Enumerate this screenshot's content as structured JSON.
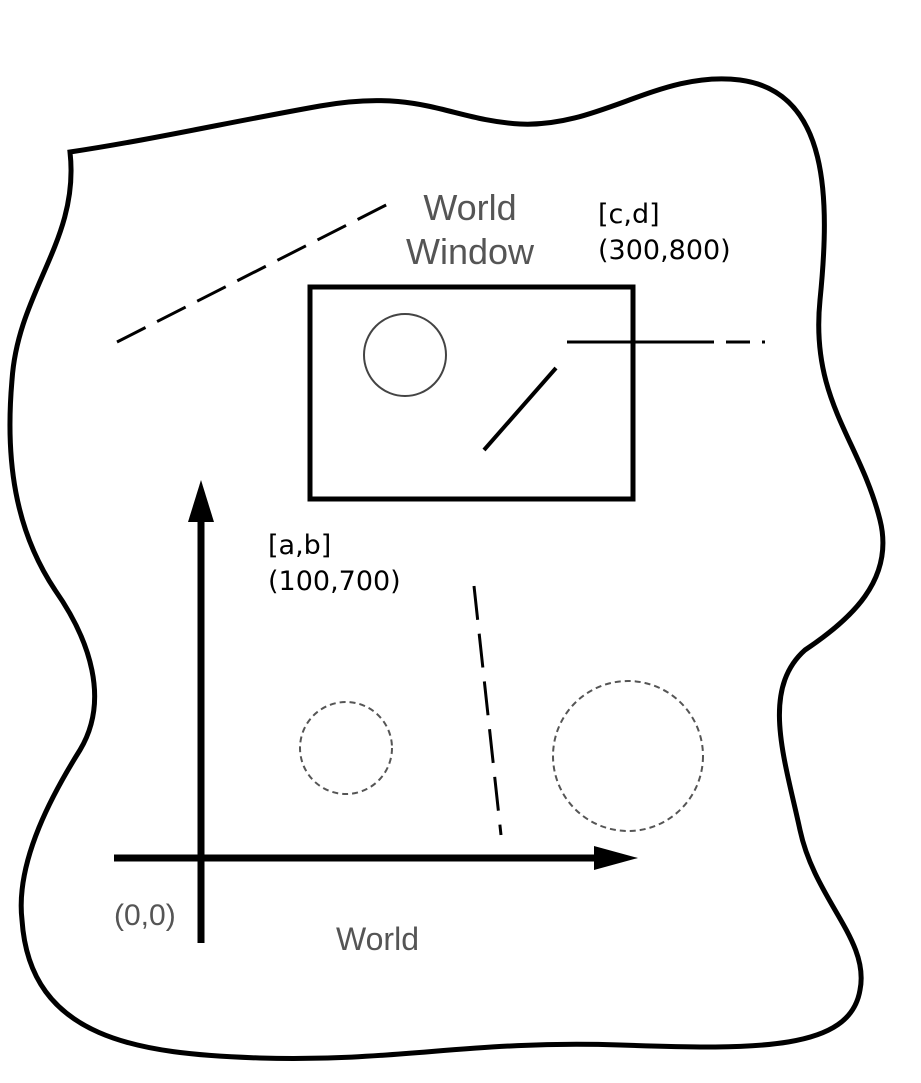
{
  "labels": {
    "world_window_line1": "World",
    "world_window_line2": "Window",
    "corner_cd_name": "[c,d]",
    "corner_cd_coords": "(300,800)",
    "corner_ab_name": "[a,b]",
    "corner_ab_coords": "(100,700)",
    "origin": "(0,0)",
    "world": "World"
  }
}
